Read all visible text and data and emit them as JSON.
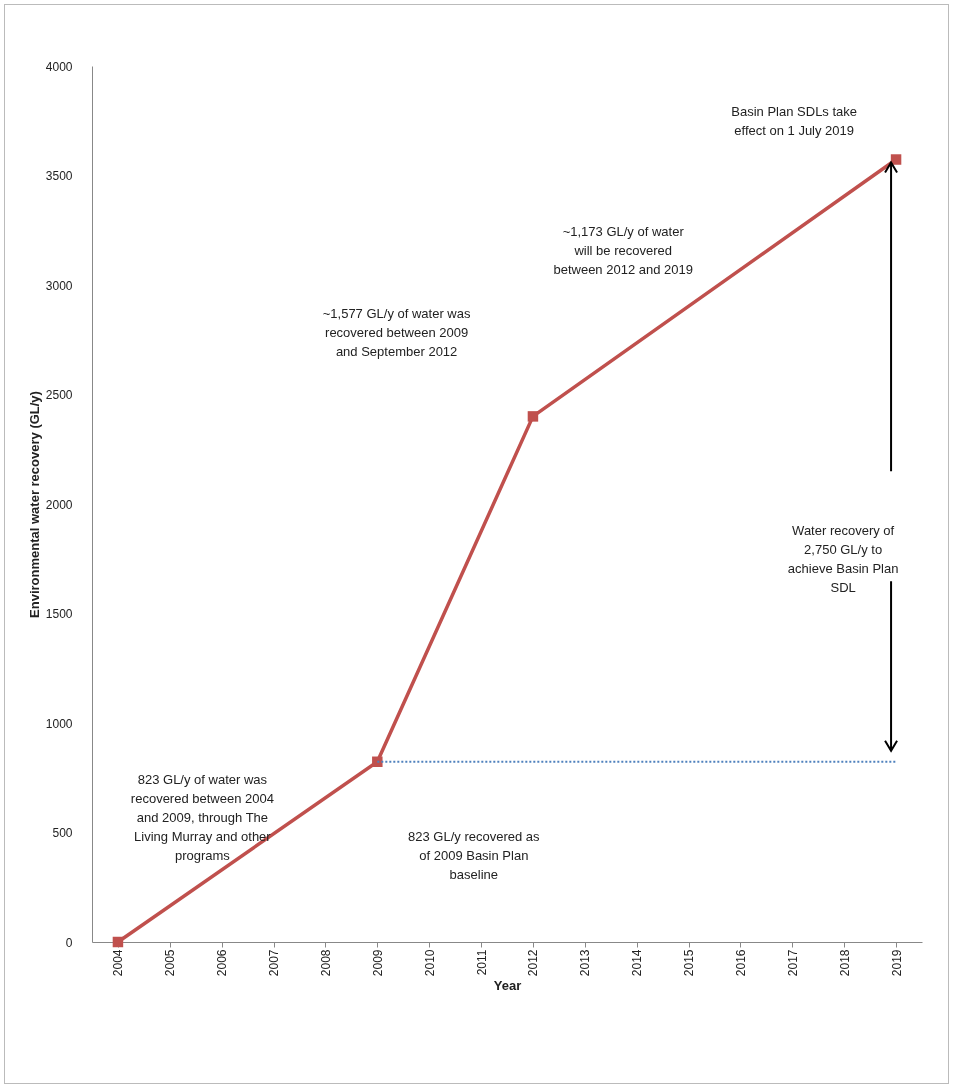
{
  "chart_data": {
    "type": "line",
    "xlabel": "Year",
    "ylabel": "Environmental water recovery (GL/y)",
    "categories": [
      "2004",
      "2005",
      "2006",
      "2007",
      "2008",
      "2009",
      "2010",
      "2011",
      "2012",
      "2013",
      "2014",
      "2015",
      "2016",
      "2017",
      "2018",
      "2019"
    ],
    "series": [
      {
        "color": "#c0504d",
        "values": [
          0,
          null,
          null,
          null,
          null,
          823,
          null,
          null,
          2400,
          null,
          null,
          null,
          null,
          null,
          null,
          3573
        ]
      },
      {
        "color": "#4f81bd",
        "line_style": "dotted",
        "marker": "none",
        "values": [
          null,
          null,
          null,
          null,
          null,
          823,
          null,
          null,
          null,
          null,
          null,
          null,
          null,
          null,
          null,
          823
        ]
      }
    ],
    "ylim": [
      0,
      4000
    ],
    "yticks": [
      0,
      500,
      1000,
      1500,
      2000,
      2500,
      3000,
      3500,
      4000
    ],
    "grid": false,
    "marker": "square",
    "line_style": "solid",
    "annotations": [
      "823 GL/y of water was recovered between 2004 and 2009, through The Living Murray and other programs",
      "~1,577 GL/y of water was recovered between 2009 and September 2012",
      "~1,173 GL/y of water will be recovered between 2012 and 2019",
      "Basin Plan SDLs take effect on 1 July 2019",
      "823 GL/y recovered as of 2009 Basin Plan baseline",
      "Water recovery of 2,750 GL/y to achieve Basin Plan SDL"
    ]
  }
}
